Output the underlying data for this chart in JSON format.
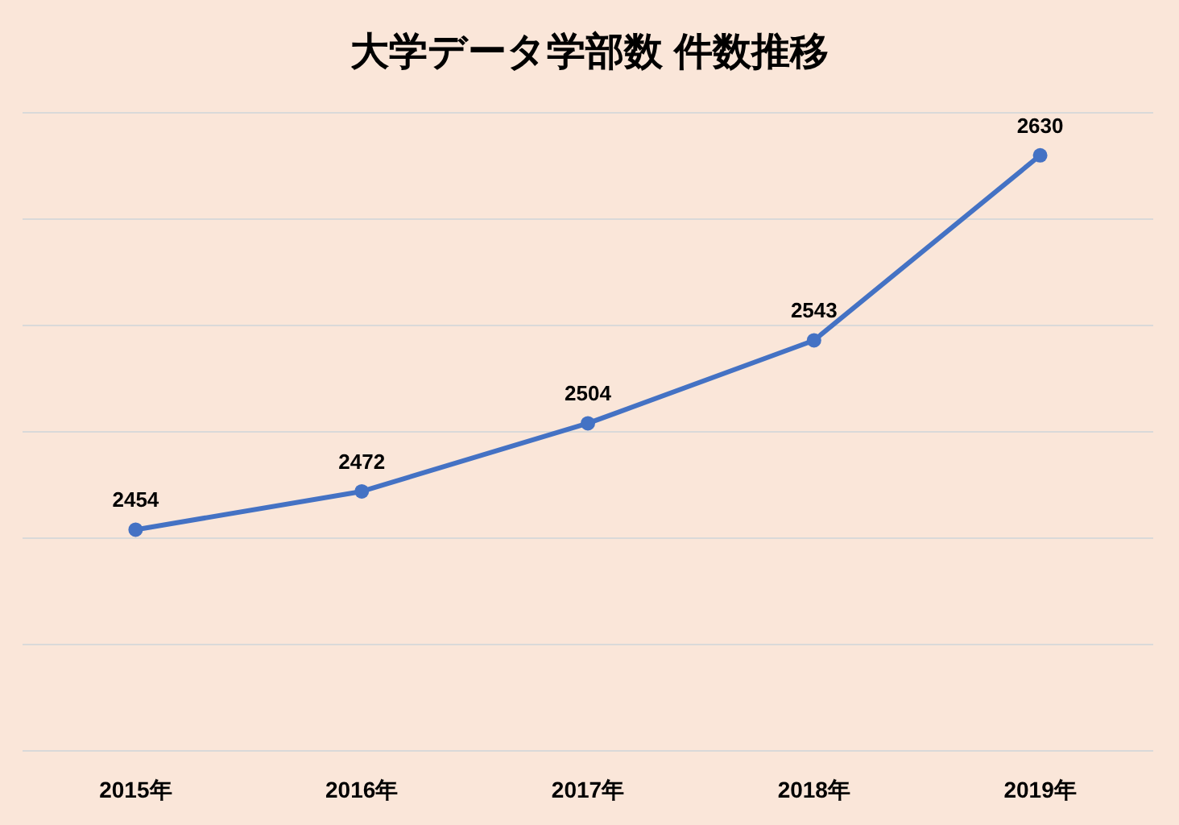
{
  "chart_data": {
    "type": "line",
    "title": "大学データ学部数 件数推移",
    "categories": [
      "2015年",
      "2016年",
      "2017年",
      "2018年",
      "2019年"
    ],
    "series": [
      {
        "color": "#4472c4",
        "values": [
          2454,
          2472,
          2504,
          2543,
          2630
        ]
      }
    ],
    "ylim": [
      2350,
      2650
    ],
    "yticks": [
      {
        "value": 2350,
        "label": null
      },
      {
        "value": 2400,
        "label": null
      },
      {
        "value": 2450,
        "label": null
      },
      {
        "value": 2500,
        "label": null
      },
      {
        "value": 2550,
        "label": null
      },
      {
        "value": 2600,
        "label": null
      },
      {
        "value": 2650,
        "label": null
      }
    ],
    "grid": "y",
    "tick_labels": "x",
    "data_labels": true,
    "marker": "circle",
    "line_style": "solid"
  }
}
